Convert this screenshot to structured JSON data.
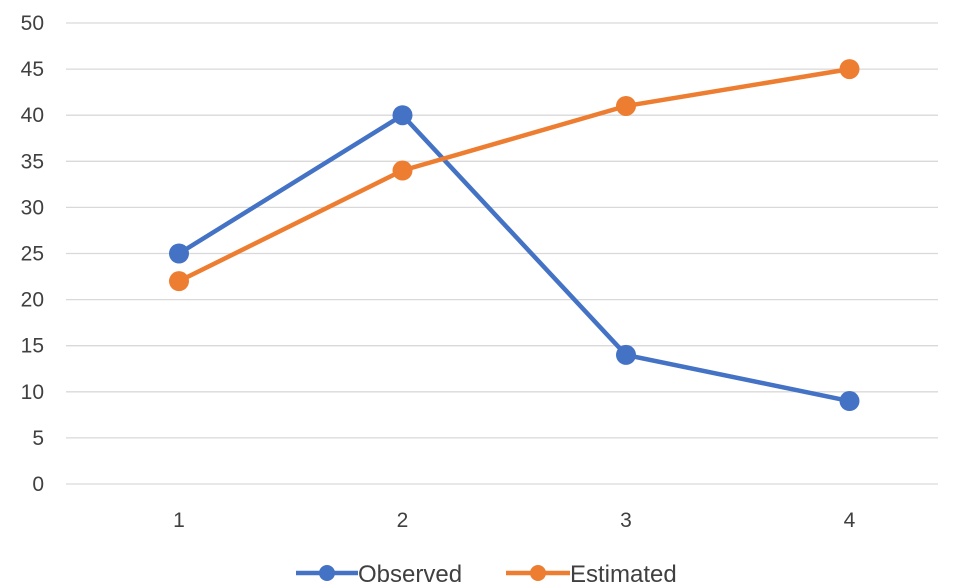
{
  "chart_data": {
    "type": "line",
    "title": "",
    "xlabel": "",
    "ylabel": "",
    "categories": [
      "1",
      "2",
      "3",
      "4"
    ],
    "ylim": [
      0,
      50
    ],
    "y_ticks": [
      0,
      5,
      10,
      15,
      20,
      25,
      30,
      35,
      40,
      45,
      50
    ],
    "grid": true,
    "legend_position": "bottom",
    "series": [
      {
        "name": "Observed",
        "color": "#4472c4",
        "marker": "circle",
        "values": [
          25,
          40,
          14,
          9
        ]
      },
      {
        "name": "Estimated",
        "color": "#ed7d31",
        "marker": "circle",
        "values": [
          22,
          34,
          41,
          45
        ]
      }
    ]
  }
}
